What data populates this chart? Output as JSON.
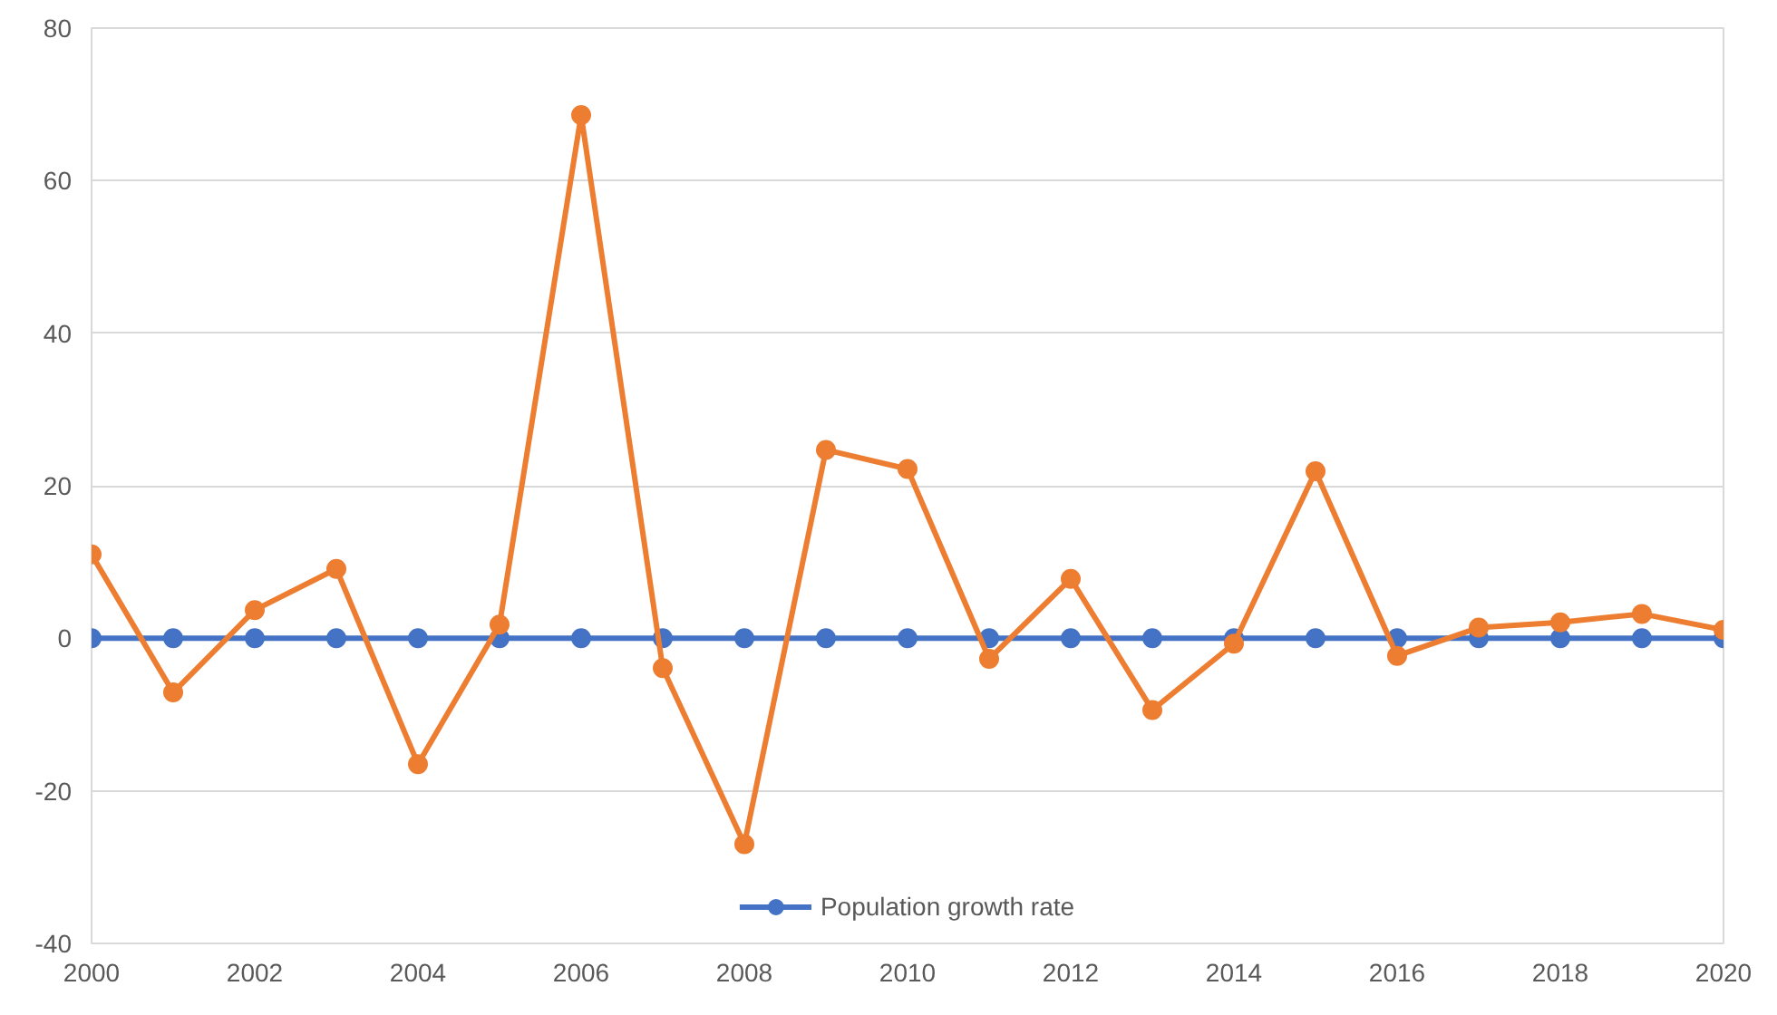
{
  "chart_data": {
    "type": "line",
    "x": [
      2000,
      2001,
      2002,
      2003,
      2004,
      2005,
      2006,
      2007,
      2008,
      2009,
      2010,
      2011,
      2012,
      2013,
      2014,
      2015,
      2016,
      2017,
      2018,
      2019,
      2020
    ],
    "series": [
      {
        "name": "Population growth rate",
        "color": "#4472c4",
        "values": [
          0,
          0,
          0,
          0,
          0,
          0,
          0,
          0,
          0,
          0,
          0,
          0,
          0,
          0,
          0,
          0,
          0,
          0,
          0,
          0,
          0
        ]
      },
      {
        "color": "#ed7d31",
        "values": [
          11.0,
          -7.1,
          3.7,
          9.1,
          -16.5,
          1.8,
          68.6,
          -3.9,
          -27.0,
          24.7,
          22.2,
          -2.7,
          7.8,
          -9.4,
          -0.7,
          21.9,
          -2.3,
          1.4,
          2.1,
          3.2,
          1.1
        ]
      }
    ],
    "xlim": [
      2000,
      2020
    ],
    "xticks": [
      2000,
      2002,
      2004,
      2006,
      2008,
      2010,
      2012,
      2014,
      2016,
      2018,
      2020
    ],
    "ylim": [
      -40,
      80
    ],
    "yticks": [
      -40,
      -20,
      0,
      20,
      40,
      60,
      80
    ],
    "grid": "y",
    "legend": "bottom",
    "marker": "circle",
    "line_style": "solid"
  }
}
